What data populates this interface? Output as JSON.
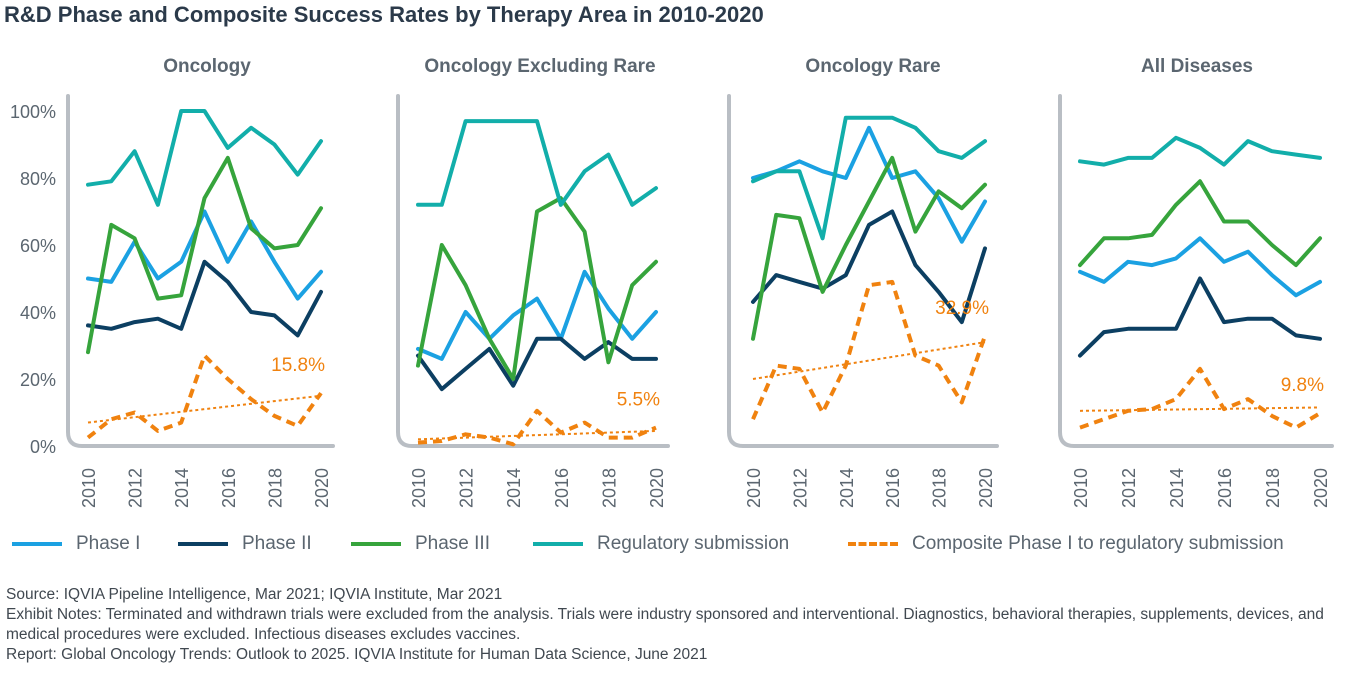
{
  "title": "R&D Phase and Composite Success Rates by Therapy Area in 2010-2020",
  "colors": {
    "phase1": "#1ba1e2",
    "phase2": "#0c3f62",
    "phase3": "#36a43c",
    "regulatory": "#12aeaa",
    "composite": "#f0820f",
    "axis": "#b9bec4",
    "tick_text": "#5b6670",
    "panel_title": "#5b6670"
  },
  "legend": [
    {
      "key": "phase1",
      "label": "Phase I",
      "style": "solid"
    },
    {
      "key": "phase2",
      "label": "Phase II",
      "style": "solid"
    },
    {
      "key": "phase3",
      "label": "Phase III",
      "style": "solid"
    },
    {
      "key": "regulatory",
      "label": "Regulatory submission",
      "style": "solid"
    },
    {
      "key": "composite",
      "label": "Composite Phase I to regulatory submission",
      "style": "dashed"
    }
  ],
  "notes": {
    "source": "Source: IQVIA Pipeline Intelligence, Mar 2021; IQVIA Institute, Mar 2021",
    "exhibit": "Exhibit Notes: Terminated and withdrawn trials were excluded from the analysis. Trials were industry sponsored and interventional. Diagnostics, behavioral therapies, supplements, devices, and medical procedures were excluded. Infectious diseases excludes vaccines.",
    "report": "Report: Global Oncology Trends: Outlook to 2025. IQVIA Institute for Human Data Science, June 2021"
  },
  "chart_data": [
    {
      "type": "line",
      "title": "Oncology",
      "x": [
        2010,
        2011,
        2012,
        2013,
        2014,
        2015,
        2016,
        2017,
        2018,
        2019,
        2020
      ],
      "x_ticks": [
        "2010",
        "2012",
        "2014",
        "2016",
        "2018",
        "2020"
      ],
      "y_ticks": [
        "0%",
        "20%",
        "40%",
        "60%",
        "80%",
        "100%"
      ],
      "ylim": [
        0,
        100
      ],
      "series": [
        {
          "key": "phase1",
          "name": "Phase I",
          "values": [
            50,
            49,
            61,
            50,
            55,
            70,
            55,
            67,
            55,
            44,
            52
          ]
        },
        {
          "key": "phase2",
          "name": "Phase II",
          "values": [
            36,
            35,
            37,
            38,
            35,
            55,
            49,
            40,
            39,
            33,
            46
          ]
        },
        {
          "key": "phase3",
          "name": "Phase III",
          "values": [
            28,
            66,
            62,
            44,
            45,
            74,
            86,
            65,
            59,
            60,
            71
          ]
        },
        {
          "key": "regulatory",
          "name": "Regulatory submission",
          "values": [
            78,
            79,
            88,
            72,
            100,
            100,
            89,
            95,
            90,
            81,
            91
          ]
        },
        {
          "key": "composite",
          "name": "Composite Phase I to regulatory submission",
          "values": [
            2.5,
            8,
            10,
            4.5,
            7,
            27,
            20,
            14,
            9,
            6,
            15.8
          ]
        }
      ],
      "trendline": [
        7,
        15
      ],
      "annotation": "15.8%"
    },
    {
      "type": "line",
      "title": "Oncology Excluding Rare",
      "x": [
        2010,
        2011,
        2012,
        2013,
        2014,
        2015,
        2016,
        2017,
        2018,
        2019,
        2020
      ],
      "x_ticks": [
        "2010",
        "2012",
        "2014",
        "2016",
        "2018",
        "2020"
      ],
      "ylim": [
        0,
        100
      ],
      "series": [
        {
          "key": "phase1",
          "name": "Phase I",
          "values": [
            29,
            26,
            40,
            32,
            39,
            44,
            32,
            52,
            41,
            32,
            40
          ]
        },
        {
          "key": "phase2",
          "name": "Phase II",
          "values": [
            27,
            17,
            23,
            29,
            18,
            32,
            32,
            26,
            31,
            26,
            26
          ]
        },
        {
          "key": "phase3",
          "name": "Phase III",
          "values": [
            24,
            60,
            48,
            32,
            20,
            70,
            74,
            64,
            25,
            48,
            55
          ]
        },
        {
          "key": "regulatory",
          "name": "Regulatory submission",
          "values": [
            72,
            72,
            97,
            97,
            97,
            97,
            72,
            82,
            87,
            72,
            77
          ]
        },
        {
          "key": "composite",
          "name": "Composite Phase I to regulatory submission",
          "values": [
            1,
            1.5,
            3.5,
            2.5,
            0.5,
            10.5,
            4,
            7,
            2.5,
            2.5,
            5.5
          ]
        }
      ],
      "trendline": [
        2,
        4.5
      ],
      "annotation": "5.5%"
    },
    {
      "type": "line",
      "title": "Oncology Rare",
      "x": [
        2010,
        2011,
        2012,
        2013,
        2014,
        2015,
        2016,
        2017,
        2018,
        2019,
        2020
      ],
      "x_ticks": [
        "2010",
        "2012",
        "2014",
        "2016",
        "2018",
        "2020"
      ],
      "ylim": [
        0,
        100
      ],
      "series": [
        {
          "key": "phase1",
          "name": "Phase I",
          "values": [
            80,
            82,
            85,
            82,
            80,
            95,
            80,
            82,
            74,
            61,
            73
          ]
        },
        {
          "key": "phase2",
          "name": "Phase II",
          "values": [
            43,
            51,
            49,
            47,
            51,
            66,
            70,
            54,
            46,
            37,
            59
          ]
        },
        {
          "key": "phase3",
          "name": "Phase III",
          "values": [
            32,
            69,
            68,
            46,
            60,
            73,
            86,
            64,
            76,
            71,
            78
          ]
        },
        {
          "key": "regulatory",
          "name": "Regulatory submission",
          "values": [
            79,
            82,
            82,
            62,
            98,
            98,
            98,
            95,
            88,
            86,
            91
          ]
        },
        {
          "key": "composite",
          "name": "Composite Phase I to regulatory submission",
          "values": [
            8,
            24,
            23,
            10,
            24,
            48,
            49,
            27,
            24,
            13,
            32.9
          ]
        }
      ],
      "trendline": [
        20,
        31
      ],
      "annotation": "32.9%"
    },
    {
      "type": "line",
      "title": "All Diseases",
      "x": [
        2010,
        2011,
        2012,
        2013,
        2014,
        2015,
        2016,
        2017,
        2018,
        2019,
        2020
      ],
      "x_ticks": [
        "2010",
        "2012",
        "2014",
        "2016",
        "2018",
        "2020"
      ],
      "ylim": [
        0,
        100
      ],
      "series": [
        {
          "key": "phase1",
          "name": "Phase I",
          "values": [
            52,
            49,
            55,
            54,
            56,
            62,
            55,
            58,
            51,
            45,
            49
          ]
        },
        {
          "key": "phase2",
          "name": "Phase II",
          "values": [
            27,
            34,
            35,
            35,
            35,
            50,
            37,
            38,
            38,
            33,
            32
          ]
        },
        {
          "key": "phase3",
          "name": "Phase III",
          "values": [
            54,
            62,
            62,
            63,
            72,
            79,
            67,
            67,
            60,
            54,
            62
          ]
        },
        {
          "key": "regulatory",
          "name": "Regulatory submission",
          "values": [
            85,
            84,
            86,
            86,
            92,
            89,
            84,
            91,
            88,
            87,
            86
          ]
        },
        {
          "key": "composite",
          "name": "Composite Phase I to regulatory submission",
          "values": [
            5.5,
            8,
            10.5,
            11,
            14,
            23,
            11,
            14,
            9,
            5.5,
            9.8
          ]
        }
      ],
      "trendline": [
        10.5,
        11.5
      ],
      "annotation": "9.8%"
    }
  ]
}
